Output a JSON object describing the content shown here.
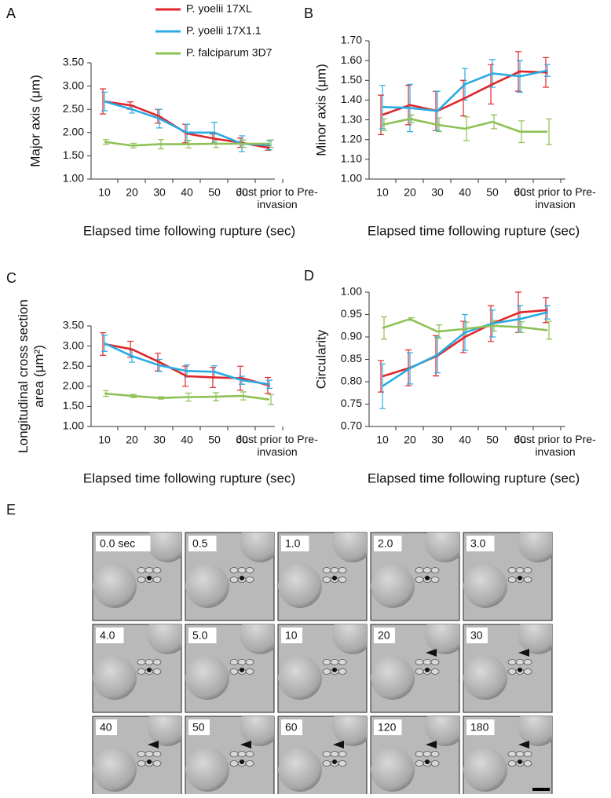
{
  "chart_data": [
    {
      "type": "line",
      "panel": "A",
      "ylabel": "Major axis (μm)",
      "xlabel": "Elapsed time following rupture (sec)",
      "categories": [
        "10",
        "20",
        "30",
        "40",
        "50",
        "60",
        "Just prior to Pre-invasion"
      ],
      "ylim": [
        1,
        3.5
      ],
      "yticks": [
        {
          "value": 1,
          "label": "1.00"
        },
        {
          "value": 1.5,
          "label": "1.50"
        },
        {
          "value": 2,
          "label": "2.00"
        },
        {
          "value": 2.5,
          "label": "2.50"
        },
        {
          "value": 3,
          "label": "3.00"
        },
        {
          "value": 3.5,
          "label": "3.50"
        }
      ],
      "series": [
        {
          "name": "P. yoelii 17XL",
          "color": "#e0262b",
          "values": [
            2.67,
            2.58,
            2.35,
            1.98,
            1.87,
            1.78,
            1.67
          ],
          "errors": [
            0.27,
            0.08,
            0.15,
            0.2,
            0.1,
            0.1,
            0.05
          ]
        },
        {
          "name": "P. yoelii 17X1.1",
          "color": "#29abe2",
          "values": [
            2.67,
            2.5,
            2.3,
            2.0,
            2.0,
            1.76,
            1.73
          ],
          "errors": [
            0.2,
            0.08,
            0.2,
            0.18,
            0.22,
            0.17,
            0.1
          ]
        },
        {
          "name": "P. falciparum 3D7",
          "color": "#8dc155",
          "values": [
            1.8,
            1.72,
            1.75,
            1.75,
            1.76,
            1.76,
            1.76
          ],
          "errors": [
            0.05,
            0.05,
            0.1,
            0.08,
            0.08,
            0.08,
            0.08
          ]
        }
      ]
    },
    {
      "type": "line",
      "panel": "B",
      "ylabel": "Minor axis (μm)",
      "xlabel": "Elapsed time following rupture (sec)",
      "categories": [
        "10",
        "20",
        "30",
        "40",
        "50",
        "60",
        "Just prior to Pre-invasion"
      ],
      "ylim": [
        1,
        1.7
      ],
      "yticks": [
        {
          "value": 1,
          "label": "1.00"
        },
        {
          "value": 1.1,
          "label": "1.10"
        },
        {
          "value": 1.2,
          "label": "1.20"
        },
        {
          "value": 1.3,
          "label": "1.30"
        },
        {
          "value": 1.4,
          "label": "1.40"
        },
        {
          "value": 1.5,
          "label": "1.50"
        },
        {
          "value": 1.6,
          "label": "1.60"
        },
        {
          "value": 1.7,
          "label": "1.70"
        }
      ],
      "series": [
        {
          "color": "#e0262b",
          "values": [
            1.325,
            1.375,
            1.345,
            1.41,
            1.48,
            1.545,
            1.54
          ],
          "errors": [
            0.1,
            0.1,
            0.1,
            0.09,
            0.1,
            0.1,
            0.075
          ]
        },
        {
          "color": "#29abe2",
          "values": [
            1.365,
            1.36,
            1.345,
            1.48,
            1.535,
            1.52,
            1.55
          ],
          "errors": [
            0.11,
            0.12,
            0.1,
            0.08,
            0.07,
            0.08,
            0.03
          ]
        },
        {
          "color": "#8dc155",
          "values": [
            1.275,
            1.305,
            1.275,
            1.255,
            1.29,
            1.24,
            1.24
          ],
          "errors": [
            0.03,
            0.02,
            0.035,
            0.06,
            0.035,
            0.055,
            0.065
          ]
        }
      ]
    },
    {
      "type": "line",
      "panel": "C",
      "ylabel": "Longitudinal cross section area (μm²)",
      "xlabel": "Elapsed time following rupture (sec)",
      "categories": [
        "10",
        "20",
        "30",
        "40",
        "50",
        "60",
        "Just prior to Pre-invasion"
      ],
      "ylim": [
        1,
        3.5
      ],
      "yticks": [
        {
          "value": 1,
          "label": "1.00"
        },
        {
          "value": 1.5,
          "label": "1.50"
        },
        {
          "value": 2,
          "label": "2.00"
        },
        {
          "value": 2.5,
          "label": "2.50"
        },
        {
          "value": 3,
          "label": "3.00"
        },
        {
          "value": 3.5,
          "label": "3.50"
        }
      ],
      "series": [
        {
          "color": "#e0262b",
          "values": [
            3.05,
            2.92,
            2.6,
            2.25,
            2.22,
            2.2,
            2.02
          ],
          "errors": [
            0.28,
            0.2,
            0.22,
            0.25,
            0.25,
            0.3,
            0.2
          ]
        },
        {
          "color": "#29abe2",
          "values": [
            3.07,
            2.75,
            2.52,
            2.38,
            2.36,
            2.15,
            2.05
          ],
          "errors": [
            0.2,
            0.15,
            0.15,
            0.15,
            0.15,
            0.1,
            0.1
          ]
        },
        {
          "color": "#8dc155",
          "values": [
            1.82,
            1.76,
            1.71,
            1.73,
            1.74,
            1.76,
            1.67
          ],
          "errors": [
            0.07,
            0.04,
            0.03,
            0.1,
            0.1,
            0.1,
            0.12
          ]
        }
      ]
    },
    {
      "type": "line",
      "panel": "D",
      "ylabel": "Circularity",
      "xlabel": "Elapsed time following rupture (sec)",
      "categories": [
        "10",
        "20",
        "30",
        "40",
        "50",
        "60",
        "Just prior to Pre-invasion"
      ],
      "ylim": [
        0.7,
        1
      ],
      "yticks": [
        {
          "value": 0.7,
          "label": "0.70"
        },
        {
          "value": 0.75,
          "label": "0.75"
        },
        {
          "value": 0.8,
          "label": "0.80"
        },
        {
          "value": 0.85,
          "label": "0.85"
        },
        {
          "value": 0.9,
          "label": "0.90"
        },
        {
          "value": 0.95,
          "label": "0.95"
        },
        {
          "value": 1,
          "label": "1.00"
        }
      ],
      "series": [
        {
          "color": "#e0262b",
          "values": [
            0.812,
            0.831,
            0.858,
            0.9,
            0.93,
            0.955,
            0.96
          ],
          "errors": [
            0.035,
            0.04,
            0.045,
            0.035,
            0.04,
            0.045,
            0.028
          ]
        },
        {
          "color": "#29abe2",
          "values": [
            0.79,
            0.83,
            0.86,
            0.91,
            0.93,
            0.94,
            0.955
          ],
          "errors": [
            0.05,
            0.035,
            0.04,
            0.04,
            0.03,
            0.03,
            0.015
          ]
        },
        {
          "color": "#8dc155",
          "values": [
            0.92,
            0.94,
            0.912,
            0.918,
            0.925,
            0.922,
            0.915
          ],
          "errors": [
            0.025,
            0.003,
            0.015,
            0.015,
            0.012,
            0.012,
            0.02
          ]
        }
      ]
    }
  ],
  "image_panel": {
    "panel": "E",
    "frame_labels": [
      "0.0 sec",
      "0.5",
      "1.0",
      "2.0",
      "3.0",
      "4.0",
      "5.0",
      "10",
      "20",
      "30",
      "40",
      "50",
      "60",
      "120",
      "180"
    ]
  }
}
